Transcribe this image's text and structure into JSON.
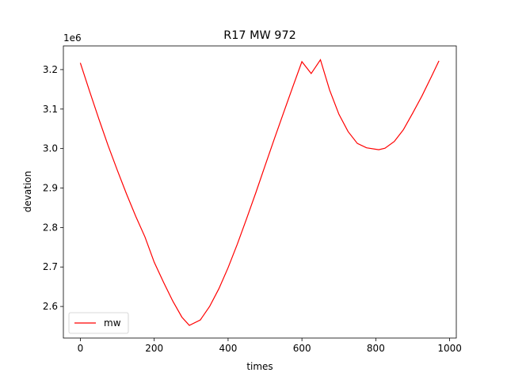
{
  "chart_data": {
    "type": "line",
    "title": "R17 MW 972",
    "xlabel": "times",
    "ylabel": "devation",
    "y_offset_label": "1e6",
    "xlim": [
      -46,
      1018
    ],
    "ylim": [
      2520000,
      3260000
    ],
    "x_ticks": [
      0,
      200,
      400,
      600,
      800,
      1000
    ],
    "x_tick_labels": [
      "0",
      "200",
      "400",
      "600",
      "800",
      "1000"
    ],
    "y_ticks": [
      2600000,
      2700000,
      2800000,
      2900000,
      3000000,
      3100000,
      3200000
    ],
    "y_tick_labels": [
      "2.6",
      "2.7",
      "2.8",
      "2.9",
      "3.0",
      "3.1",
      "3.2"
    ],
    "grid": false,
    "legend_position": "lower-left",
    "series": [
      {
        "name": "mw",
        "color": "#ff0000",
        "x": [
          0,
          25,
          50,
          75,
          100,
          125,
          150,
          175,
          200,
          225,
          250,
          275,
          295,
          325,
          350,
          375,
          400,
          425,
          450,
          475,
          500,
          525,
          550,
          575,
          600,
          625,
          650,
          675,
          700,
          725,
          750,
          775,
          808,
          825,
          850,
          875,
          900,
          925,
          950,
          971
        ],
        "values": [
          3217000,
          3145000,
          3075000,
          3008000,
          2945000,
          2885000,
          2828000,
          2776000,
          2712000,
          2662000,
          2614000,
          2573000,
          2552000,
          2566000,
          2600000,
          2645000,
          2698000,
          2758000,
          2822000,
          2888000,
          2956000,
          3024000,
          3090000,
          3156000,
          3220000,
          3190000,
          3225000,
          3148000,
          3087000,
          3043000,
          3013000,
          3002000,
          2997000,
          3001000,
          3018000,
          3048000,
          3090000,
          3133000,
          3181000,
          3222000
        ]
      }
    ]
  }
}
